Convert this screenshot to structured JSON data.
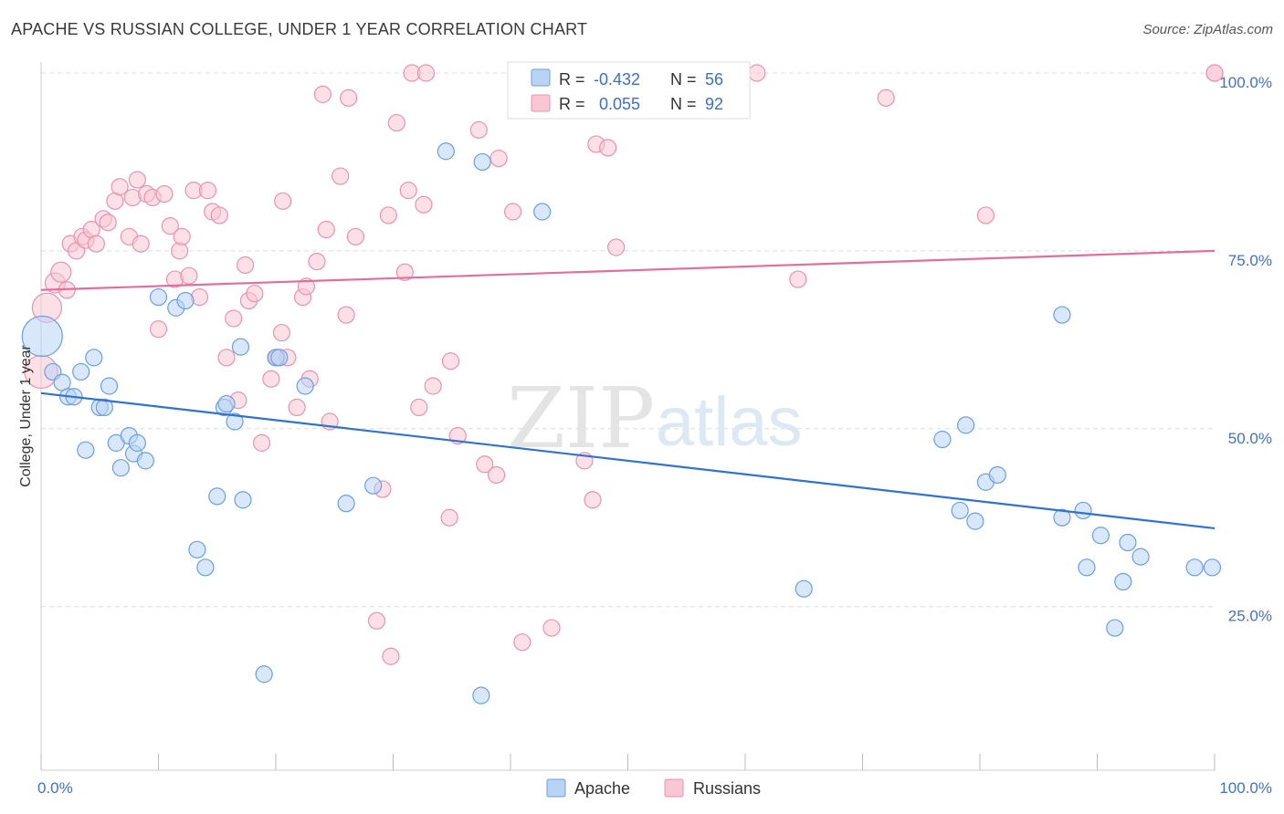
{
  "header": {
    "title": "APACHE VS RUSSIAN COLLEGE, UNDER 1 YEAR CORRELATION CHART",
    "source": "Source: ZipAtlas.com"
  },
  "watermark": {
    "zip": "ZIP",
    "atlas": "atlas"
  },
  "colors": {
    "apache_fill": "#b9d3f5",
    "apache_stroke": "#6c9fe0",
    "apache_line": "#2f73d2",
    "russian_fill": "#f9c6d6",
    "russian_stroke": "#e893b0",
    "russian_line": "#e36f98",
    "grid": "#dddddd",
    "tick_label": "#4472c4"
  },
  "stats_legend": {
    "rows": [
      {
        "r_label": "R =",
        "r_value": "-0.432",
        "n_label": "N =",
        "n_value": "56"
      },
      {
        "r_label": "R =",
        "r_value": "0.055",
        "n_label": "N =",
        "n_value": "92"
      }
    ]
  },
  "bottom_legend": {
    "items": [
      "Apache",
      "Russians"
    ]
  },
  "chart_data": {
    "type": "scatter",
    "xlabel": "",
    "ylabel": "College, Under 1 year",
    "xlim": [
      0,
      100
    ],
    "ylim": [
      2,
      100
    ],
    "x_tick_labels": {
      "min": "0.0%",
      "max": "100.0%"
    },
    "y_ticks": [
      {
        "value": 25,
        "label": "25.0%"
      },
      {
        "value": 50,
        "label": "50.0%"
      },
      {
        "value": 75,
        "label": "75.0%"
      },
      {
        "value": 100,
        "label": "100.0%"
      }
    ],
    "grid": true,
    "series": [
      {
        "name": "Apache",
        "trend": {
          "x": [
            0,
            100
          ],
          "y": [
            55,
            36
          ]
        },
        "points": [
          [
            0.1,
            63,
            22
          ],
          [
            1,
            58,
            9
          ],
          [
            1.8,
            56.5,
            9
          ],
          [
            2.3,
            54.5,
            9
          ],
          [
            2.8,
            54.5,
            9
          ],
          [
            3.4,
            58,
            9
          ],
          [
            3.8,
            47,
            9
          ],
          [
            4.5,
            60,
            9
          ],
          [
            5,
            53,
            9
          ],
          [
            5.4,
            53,
            9
          ],
          [
            5.8,
            56,
            9
          ],
          [
            6.4,
            48,
            9
          ],
          [
            6.8,
            44.5,
            9
          ],
          [
            7.5,
            49,
            9
          ],
          [
            7.9,
            46.5,
            9
          ],
          [
            8.2,
            48,
            9
          ],
          [
            8.9,
            45.5,
            9
          ],
          [
            10,
            68.5,
            9
          ],
          [
            11.5,
            67,
            9
          ],
          [
            12.3,
            68,
            9
          ],
          [
            13.3,
            33,
            9
          ],
          [
            14,
            30.5,
            9
          ],
          [
            15,
            40.5,
            9
          ],
          [
            15.6,
            53,
            9
          ],
          [
            15.8,
            53.5,
            9
          ],
          [
            16.5,
            51,
            9
          ],
          [
            17,
            61.5,
            9
          ],
          [
            17.2,
            40,
            9
          ],
          [
            19,
            15.5,
            9
          ],
          [
            20,
            60,
            9
          ],
          [
            20.3,
            60,
            9
          ],
          [
            22.5,
            56,
            9
          ],
          [
            26,
            39.5,
            9
          ],
          [
            28.3,
            42,
            9
          ],
          [
            34.5,
            89,
            9
          ],
          [
            37.5,
            12.5,
            9
          ],
          [
            37.6,
            87.5,
            9
          ],
          [
            42.7,
            80.5,
            9
          ],
          [
            65,
            27.5,
            9
          ],
          [
            76.8,
            48.5,
            9
          ],
          [
            78.3,
            38.5,
            9
          ],
          [
            78.8,
            50.5,
            9
          ],
          [
            79.6,
            37,
            9
          ],
          [
            80.5,
            42.5,
            9
          ],
          [
            81.5,
            43.5,
            9
          ],
          [
            87,
            66,
            9
          ],
          [
            87,
            37.5,
            9
          ],
          [
            88.8,
            38.5,
            9
          ],
          [
            89.1,
            30.5,
            9
          ],
          [
            90.3,
            35,
            9
          ],
          [
            91.5,
            22,
            9
          ],
          [
            92.2,
            28.5,
            9
          ],
          [
            92.6,
            34,
            9
          ],
          [
            93.7,
            32,
            9
          ],
          [
            98.3,
            30.5,
            9
          ],
          [
            99.8,
            30.5,
            9
          ]
        ]
      },
      {
        "name": "Russians",
        "trend": {
          "x": [
            0,
            100
          ],
          "y": [
            69.5,
            75
          ]
        },
        "points": [
          [
            0,
            58,
            18
          ],
          [
            0.5,
            67,
            16
          ],
          [
            1.2,
            70.5,
            11
          ],
          [
            1.7,
            72,
            11
          ],
          [
            2.2,
            69.5,
            9
          ],
          [
            2.5,
            76,
            9
          ],
          [
            3,
            75,
            9
          ],
          [
            3.5,
            77,
            9
          ],
          [
            3.8,
            76.5,
            9
          ],
          [
            4.3,
            78,
            9
          ],
          [
            4.7,
            76,
            9
          ],
          [
            5.3,
            79.5,
            9
          ],
          [
            5.7,
            79,
            9
          ],
          [
            6.3,
            82,
            9
          ],
          [
            6.7,
            84,
            9
          ],
          [
            7.5,
            77,
            9
          ],
          [
            7.8,
            82.5,
            9
          ],
          [
            8.2,
            85,
            9
          ],
          [
            8.5,
            76,
            9
          ],
          [
            9,
            83,
            9
          ],
          [
            9.5,
            82.5,
            9
          ],
          [
            10,
            64,
            9
          ],
          [
            10.5,
            83,
            9
          ],
          [
            11,
            78.5,
            9
          ],
          [
            11.4,
            71,
            9
          ],
          [
            11.8,
            75,
            9
          ],
          [
            12,
            77,
            9
          ],
          [
            12.6,
            71.5,
            9
          ],
          [
            13,
            83.5,
            9
          ],
          [
            13.5,
            68.5,
            9
          ],
          [
            14.2,
            83.5,
            9
          ],
          [
            14.6,
            80.5,
            9
          ],
          [
            15.2,
            80,
            9
          ],
          [
            15.8,
            60,
            9
          ],
          [
            16.4,
            65.5,
            9
          ],
          [
            16.8,
            54,
            9
          ],
          [
            17.4,
            73,
            9
          ],
          [
            17.7,
            68,
            9
          ],
          [
            18.2,
            69,
            9
          ],
          [
            18.8,
            48,
            9
          ],
          [
            19.6,
            57,
            9
          ],
          [
            20.1,
            60,
            9
          ],
          [
            20.5,
            63.5,
            9
          ],
          [
            20.6,
            82,
            9
          ],
          [
            21,
            60,
            9
          ],
          [
            21.8,
            53,
            9
          ],
          [
            22.3,
            68.5,
            9
          ],
          [
            22.6,
            70,
            9
          ],
          [
            22.9,
            57,
            9
          ],
          [
            23.5,
            73.5,
            9
          ],
          [
            24,
            97,
            9
          ],
          [
            24.3,
            78,
            9
          ],
          [
            24.6,
            51,
            9
          ],
          [
            25.5,
            85.5,
            9
          ],
          [
            26,
            66,
            9
          ],
          [
            26.2,
            96.5,
            9
          ],
          [
            26.8,
            77,
            9
          ],
          [
            28.6,
            23,
            9
          ],
          [
            29.1,
            41.5,
            9
          ],
          [
            29.6,
            80,
            9
          ],
          [
            29.8,
            18,
            9
          ],
          [
            30.3,
            93,
            9
          ],
          [
            31,
            72,
            9
          ],
          [
            31.3,
            83.5,
            9
          ],
          [
            31.6,
            100,
            9
          ],
          [
            32.2,
            53,
            9
          ],
          [
            32.6,
            81.5,
            9
          ],
          [
            32.8,
            100,
            9
          ],
          [
            33.4,
            56,
            9
          ],
          [
            34.8,
            37.5,
            9
          ],
          [
            34.9,
            59.5,
            9
          ],
          [
            35.5,
            49,
            9
          ],
          [
            37.3,
            92,
            9
          ],
          [
            37.8,
            45,
            9
          ],
          [
            38.8,
            43.5,
            9
          ],
          [
            39,
            88,
            9
          ],
          [
            40.2,
            80.5,
            9
          ],
          [
            41,
            20,
            9
          ],
          [
            43.5,
            22,
            9
          ],
          [
            45,
            100,
            9
          ],
          [
            46.3,
            45.5,
            9
          ],
          [
            47,
            40,
            9
          ],
          [
            47.3,
            90,
            9
          ],
          [
            48.3,
            89.5,
            9
          ],
          [
            49,
            75.5,
            9
          ],
          [
            59,
            100,
            9
          ],
          [
            61,
            100,
            9
          ],
          [
            64.5,
            71,
            9
          ],
          [
            72,
            96.5,
            9
          ],
          [
            80.5,
            80,
            9
          ],
          [
            100,
            100,
            9
          ],
          [
            100,
            100,
            9
          ]
        ]
      }
    ]
  }
}
